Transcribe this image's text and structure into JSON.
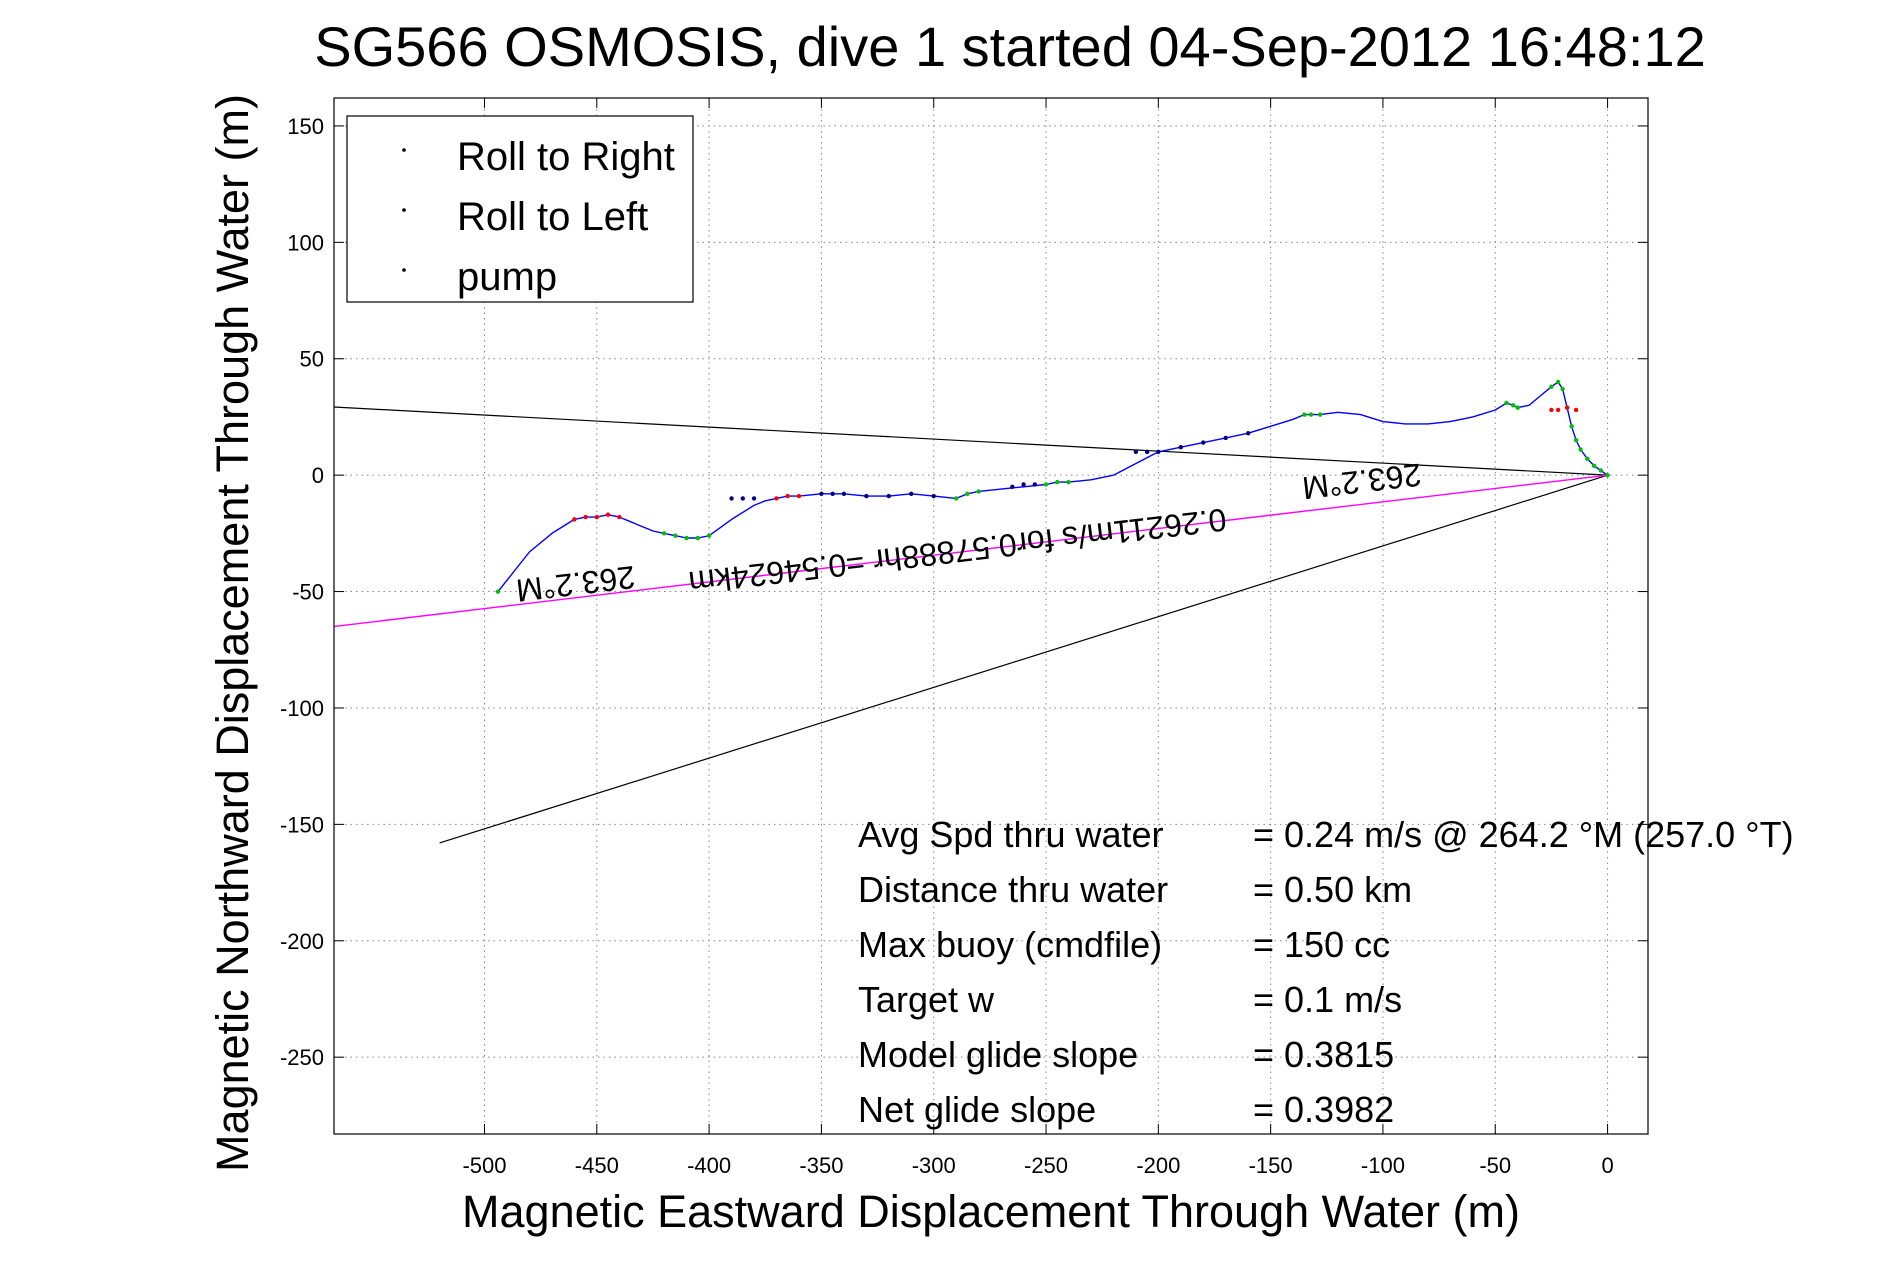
{
  "chart_data": {
    "type": "line",
    "title": "SG566 OSMOSIS, dive 1 started 04-Sep-2012 16:48:12",
    "xlabel": "Magnetic Eastward Displacement Through Water (m)",
    "ylabel": "Magnetic Northward Displacement Through Water (m)",
    "xlim": [
      -567,
      18
    ],
    "ylim": [
      -283,
      162
    ],
    "xticks": [
      -500,
      -450,
      -400,
      -350,
      -300,
      -250,
      -200,
      -150,
      -100,
      -50,
      0
    ],
    "yticks": [
      150,
      100,
      50,
      0,
      -50,
      -100,
      -150,
      -200,
      -250
    ],
    "grid": true,
    "legend": {
      "placement": "top-left",
      "entries": [
        {
          "label": "Roll to Right",
          "color": "#00c000"
        },
        {
          "label": "Roll to Left",
          "color": "#ff0000"
        },
        {
          "label": "pump",
          "color": "#000080"
        }
      ]
    },
    "colors": {
      "track": "#0000ff",
      "heading_lines": "#000000",
      "current_line": "#ff00ff"
    },
    "track": {
      "x": [
        0,
        -3,
        -6,
        -9,
        -12,
        -14,
        -16,
        -18,
        -20,
        -22,
        -25,
        -30,
        -35,
        -40,
        -42,
        -45,
        -50,
        -60,
        -70,
        -80,
        -90,
        -100,
        -110,
        -120,
        -128,
        -132,
        -135,
        -140,
        -150,
        -160,
        -170,
        -180,
        -190,
        -200,
        -210,
        -220,
        -230,
        -240,
        -245,
        -250,
        -260,
        -270,
        -280,
        -285,
        -290,
        -300,
        -310,
        -320,
        -330,
        -340,
        -350,
        -360,
        -365,
        -370,
        -375,
        -380,
        -390,
        -400,
        -405,
        -410,
        -415,
        -420,
        -425,
        -430,
        -435,
        -440,
        -445,
        -450,
        -455,
        -460,
        -470,
        -480,
        -494
      ],
      "y": [
        0,
        2,
        4,
        7,
        11,
        15,
        21,
        29,
        37,
        40,
        38,
        34,
        30,
        29,
        30,
        31,
        28,
        25,
        23,
        22,
        22,
        23,
        26,
        27,
        26,
        26,
        26,
        24,
        21,
        18,
        16,
        14,
        12,
        10,
        5,
        0,
        -2,
        -3,
        -3,
        -4,
        -5,
        -6,
        -7,
        -8,
        -10,
        -9,
        -8,
        -9,
        -9,
        -8,
        -8,
        -9,
        -9,
        -10,
        -11,
        -13,
        -19,
        -26,
        -27,
        -27,
        -26,
        -25,
        -24,
        -22,
        -20,
        -18,
        -17,
        -18,
        -18,
        -19,
        -25,
        -33,
        -50
      ]
    },
    "roll_right_points": {
      "x": [
        0,
        -3,
        -6,
        -9,
        -12,
        -14,
        -16,
        -18,
        -20,
        -22,
        -25,
        -40,
        -42,
        -45,
        -128,
        -132,
        -135,
        -240,
        -245,
        -250,
        -280,
        -285,
        -290,
        -400,
        -405,
        -410,
        -415,
        -420,
        -494
      ],
      "y": [
        0,
        2,
        4,
        7,
        11,
        15,
        21,
        29,
        37,
        40,
        38,
        29,
        30,
        31,
        26,
        26,
        26,
        -3,
        -3,
        -4,
        -7,
        -8,
        -10,
        -26,
        -27,
        -27,
        -26,
        -25,
        -50
      ]
    },
    "roll_left_points": {
      "x": [
        -14,
        -18,
        -22,
        -25,
        -360,
        -365,
        -370,
        -440,
        -445,
        -450,
        -455,
        -460
      ],
      "y": [
        28,
        29,
        28,
        28,
        -9,
        -9,
        -10,
        -18,
        -17,
        -18,
        -18,
        -19
      ]
    },
    "pump_points": {
      "x": [
        -160,
        -170,
        -180,
        -190,
        -200,
        -205,
        -210,
        -255,
        -260,
        -265,
        -300,
        -310,
        -320,
        -330,
        -340,
        -345,
        -350,
        -380,
        -385,
        -390
      ],
      "y": [
        18,
        16,
        14,
        12,
        10,
        10,
        10,
        -4,
        -4,
        -5,
        -9,
        -8,
        -9,
        -9,
        -8,
        -8,
        -8,
        -10,
        -10,
        -10
      ]
    },
    "heading_lines": [
      {
        "x": [
          0,
          -620
        ],
        "y": [
          0,
          32
        ]
      },
      {
        "x": [
          0,
          -520
        ],
        "y": [
          0,
          -158
        ]
      }
    ],
    "current_line": {
      "x": [
        0,
        -567
      ],
      "y": [
        0,
        -65
      ]
    },
    "annotations": [
      {
        "text": "263.2°M",
        "x": -110,
        "y": 2
      },
      {
        "text": "0.26211m/s for0.57888hr =0.54624km",
        "x": -290,
        "y": -28
      },
      {
        "text": "263.2°M",
        "x": -460,
        "y": -42
      }
    ],
    "stats": [
      {
        "label": "Avg Spd thru water",
        "value": "=  0.24 m/s @ 264.2 °M (257.0 °T)"
      },
      {
        "label": "Distance thru water",
        "value": "=  0.50 km"
      },
      {
        "label": "Max buoy (cmdfile)",
        "value": "= 150 cc"
      },
      {
        "label": "Target w",
        "value": "= 0.1 m/s"
      },
      {
        "label": "Model glide slope",
        "value": "= 0.3815"
      },
      {
        "label": "Net glide slope",
        "value": "= 0.3982"
      }
    ]
  }
}
